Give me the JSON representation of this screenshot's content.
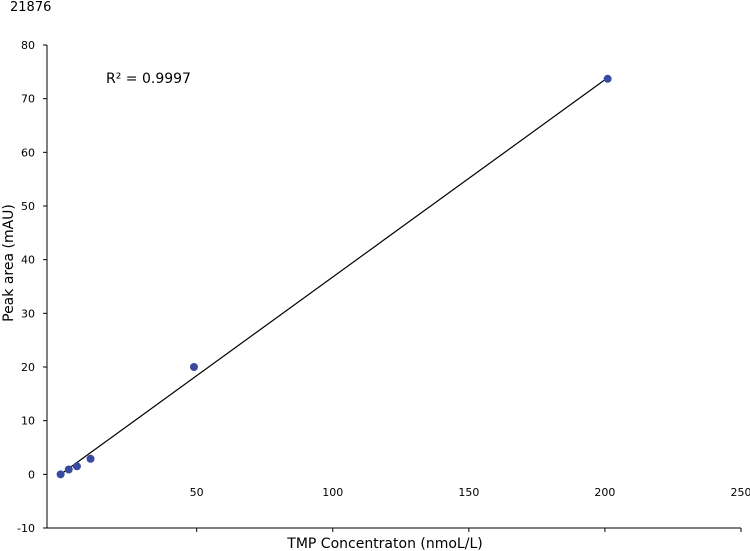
{
  "figure_id": "21876",
  "chart_data": {
    "type": "scatter",
    "xlabel": "TMP Concentraton (nmoL/L)",
    "ylabel": "Peak area (mAU)",
    "xlim": [
      -5,
      250
    ],
    "ylim": [
      -10,
      80
    ],
    "x_ticks": [
      50,
      100,
      150,
      200,
      250
    ],
    "y_ticks": [
      -10,
      0,
      10,
      20,
      30,
      40,
      50,
      60,
      70,
      80
    ],
    "annotation": "R² = 0.9997",
    "grid": false,
    "marker_color": "#3a4aa0",
    "series": [
      {
        "x": [
          0,
          3,
          6,
          11,
          49,
          201
        ],
        "y": [
          0.0,
          0.9,
          1.5,
          2.9,
          20.0,
          73.7
        ]
      }
    ],
    "trendline": {
      "x": [
        0,
        201
      ],
      "y": [
        0.0,
        73.9
      ]
    }
  }
}
